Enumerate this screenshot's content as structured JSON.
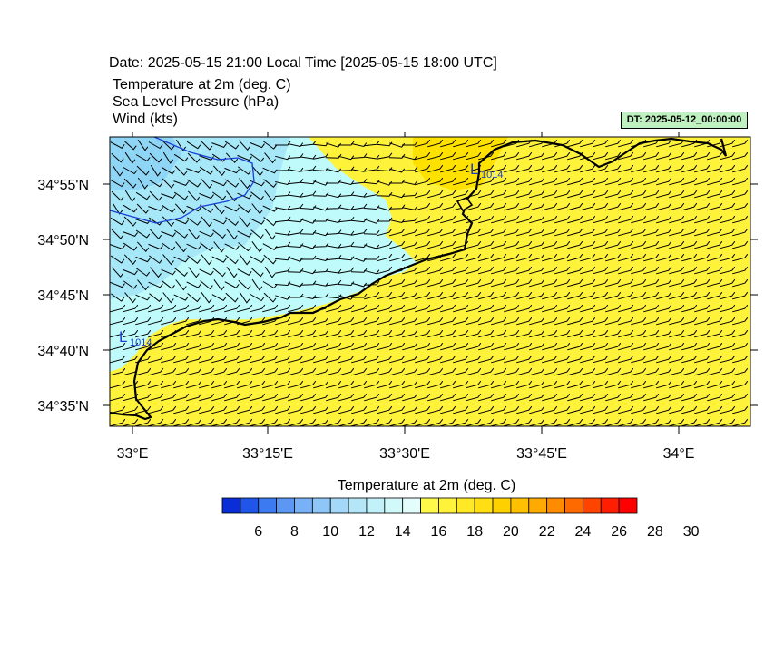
{
  "header": {
    "title": "Date: 2025-05-15  21:00 Local Time [2025-05-15  18:00 UTC]",
    "field1": "Temperature at 2m   (deg. C)",
    "field2": "Sea Level Pressure   (hPa)",
    "field3": "Wind   (kts)",
    "dt_badge": "DT: 2025-05-12_00:00:00"
  },
  "map": {
    "lon_labels": [
      "33°E",
      "33°15'E",
      "33°30'E",
      "33°45'E",
      "34°E"
    ],
    "lat_labels": [
      "34°55'N",
      "34°50'N",
      "34°45'N",
      "34°40'N",
      "34°35'N"
    ],
    "pressure_lows": [
      {
        "letter": "L",
        "value": "1014"
      },
      {
        "letter": "L",
        "value": "1014"
      }
    ],
    "colors": {
      "warm_fill": "#fff23a",
      "warm_dark": "#ffe100",
      "cool_fill": "#c0fbfb",
      "cool_mid": "#a6e8f8",
      "cool_dark": "#8fd6f6",
      "isobar": "#1a3fd6",
      "coast": "#000000"
    }
  },
  "colorbar": {
    "title": "Temperature at 2m  (deg. C)",
    "labels": [
      "6",
      "8",
      "10",
      "12",
      "14",
      "16",
      "18",
      "20",
      "22",
      "24",
      "26",
      "28",
      "30"
    ],
    "colors": [
      "#0a2dd6",
      "#1f55e8",
      "#3b7af0",
      "#5b97f3",
      "#78b1f6",
      "#8fc6f8",
      "#a4d8f8",
      "#b5e6f8",
      "#c3f1f9",
      "#d2f9fa",
      "#e2fdfc",
      "#fff94a",
      "#fff23a",
      "#ffe926",
      "#ffdf14",
      "#ffd000",
      "#ffc000",
      "#ffaa00",
      "#ff8c00",
      "#ff6a00",
      "#ff4400",
      "#ff1e00",
      "#ff0000"
    ]
  }
}
